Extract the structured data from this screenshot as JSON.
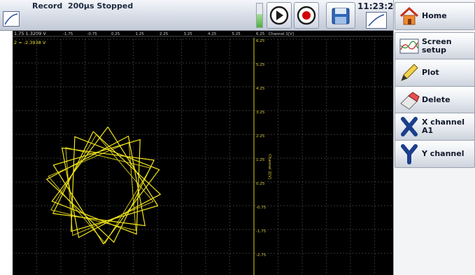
{
  "status_bar": {
    "title": "Record  200µs Stopped",
    "time": "11:23:22",
    "play_icon": "play-icon",
    "record_icon": "record-icon",
    "save_icon": "save-disk-icon",
    "record_color": "#d40000"
  },
  "plot": {
    "cursor_readout_1": "1.75  1.3209 V",
    "cursor_readout_2": "2 = -2.3938 V",
    "x_axis_title": "Channel 1[V]",
    "y_axis_title": "Channel 2[V]",
    "x_tick_labels": [
      "-1.75",
      "-1.75",
      "-0.75",
      "0.25",
      "1.25",
      "2.25",
      "3.25",
      "4.25",
      "5.25",
      "6.25"
    ],
    "y_tick_labels": [
      "6.25",
      "5.25",
      "4.25",
      "3.25",
      "2.25",
      "1.25",
      "0.25",
      "-0.75",
      "-1.75",
      "-2.75",
      "-3.75"
    ],
    "trace_color": "#f2e51a",
    "grid": true
  },
  "sidebar": {
    "home": "Home",
    "screen_setup_1": "Screen",
    "screen_setup_2": "setup",
    "plot": "Plot",
    "delete": "Delete",
    "x_channel_1": "X channel",
    "x_channel_2": "A1",
    "y_channel": "Y channel"
  }
}
